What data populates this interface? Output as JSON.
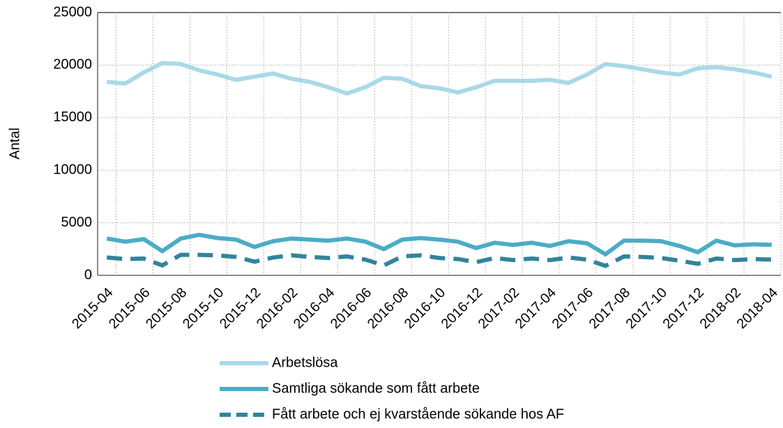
{
  "chart_data": {
    "type": "line",
    "categories": [
      "2015-04",
      null,
      "2015-06",
      null,
      "2015-08",
      null,
      "2015-10",
      null,
      "2015-12",
      null,
      "2016-02",
      null,
      "2016-04",
      null,
      "2016-06",
      null,
      "2016-08",
      null,
      "2016-10",
      null,
      "2016-12",
      null,
      "2017-02",
      null,
      "2017-04",
      null,
      "2017-06",
      null,
      "2017-08",
      null,
      "2017-10",
      null,
      "2017-12",
      null,
      "2018-02",
      null,
      "2018-04"
    ],
    "y_label": "Antal",
    "ylim": [
      0,
      25000
    ],
    "yticks": [
      0,
      5000,
      10000,
      15000,
      20000,
      25000
    ],
    "grid": true,
    "series": [
      {
        "name": "Arbetslösa",
        "color": "#a9d9e8",
        "linestyle": "solid",
        "values": [
          18400,
          18250,
          19300,
          20200,
          20100,
          19500,
          19100,
          18600,
          18900,
          19200,
          18700,
          18400,
          17900,
          17300,
          17900,
          18800,
          18700,
          18000,
          17800,
          17400,
          17900,
          18500,
          18500,
          18500,
          18600,
          18300,
          19100,
          20100,
          19900,
          19600,
          19300,
          19100,
          19700,
          19800,
          19600,
          19300,
          18900
        ]
      },
      {
        "name": "Samtliga sökande som fått arbete",
        "color": "#4bacc6",
        "linestyle": "solid",
        "values": [
          3500,
          3200,
          3450,
          2300,
          3500,
          3850,
          3550,
          3400,
          2700,
          3250,
          3500,
          3400,
          3300,
          3500,
          3200,
          2500,
          3400,
          3550,
          3400,
          3200,
          2600,
          3100,
          2900,
          3100,
          2800,
          3250,
          3050,
          2000,
          3300,
          3300,
          3250,
          2800,
          2200,
          3300,
          2850,
          2950,
          2900
        ]
      },
      {
        "name": "Fått arbete och ej kvarstående sökande hos AF",
        "color": "#31849b",
        "linestyle": "dashed",
        "values": [
          1700,
          1550,
          1600,
          950,
          1950,
          1950,
          1900,
          1750,
          1300,
          1700,
          1900,
          1750,
          1650,
          1800,
          1500,
          950,
          1800,
          1900,
          1650,
          1550,
          1250,
          1650,
          1450,
          1600,
          1450,
          1700,
          1500,
          900,
          1800,
          1750,
          1650,
          1400,
          1100,
          1600,
          1450,
          1550,
          1500
        ]
      }
    ]
  }
}
